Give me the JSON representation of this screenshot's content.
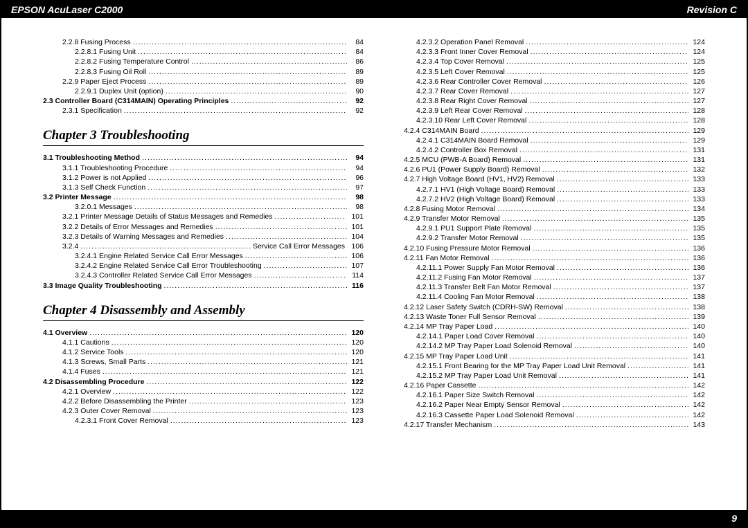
{
  "header": {
    "left": "EPSON AcuLaser C2000",
    "right": "Revision C"
  },
  "footer": {
    "page": "9"
  },
  "col1": {
    "block1": [
      {
        "lvl": 1,
        "bold": false,
        "label": "2.2.8 Fusing Process",
        "page": "84"
      },
      {
        "lvl": 2,
        "bold": false,
        "label": "2.2.8.1 Fusing Unit",
        "page": "84"
      },
      {
        "lvl": 2,
        "bold": false,
        "label": "2.2.8.2 Fusing Temperature Control",
        "page": "86"
      },
      {
        "lvl": 2,
        "bold": false,
        "label": "2.2.8.3 Fusing Oil Roll",
        "page": "89"
      },
      {
        "lvl": 1,
        "bold": false,
        "label": "2.2.9 Paper Eject Process",
        "page": "89"
      },
      {
        "lvl": 2,
        "bold": false,
        "label": "2.2.9.1 Duplex Unit (option)",
        "page": "90"
      },
      {
        "lvl": 0,
        "bold": true,
        "label": "2.3 Controller Board (C314MAIN) Operating Principles",
        "page": "92"
      },
      {
        "lvl": 1,
        "bold": false,
        "label": "2.3.1 Specification",
        "page": "92"
      }
    ],
    "chapter3": "Chapter 3  Troubleshooting",
    "block3": [
      {
        "lvl": 0,
        "bold": true,
        "label": "3.1 Troubleshooting Method",
        "page": "94"
      },
      {
        "lvl": 1,
        "bold": false,
        "label": "3.1.1 Troubleshooting Procedure",
        "page": "94"
      },
      {
        "lvl": 1,
        "bold": false,
        "label": "3.1.2 Power is not Applied",
        "page": "96"
      },
      {
        "lvl": 1,
        "bold": false,
        "label": "3.1.3 Self Check Function",
        "page": "97"
      },
      {
        "lvl": 0,
        "bold": true,
        "label": "3.2 Printer Message",
        "page": "98"
      },
      {
        "lvl": 2,
        "bold": false,
        "label": "3.2.0.1 Messages",
        "page": "98"
      },
      {
        "lvl": 1,
        "bold": false,
        "label": "3.2.1 Printer Message Details of Status Messages and Remedies",
        "mid": ".",
        "page": "101"
      },
      {
        "lvl": 1,
        "bold": false,
        "label": "3.2.2 Details of Error Messages and Remedies",
        "page": "101"
      },
      {
        "lvl": 1,
        "bold": false,
        "label": "3.2.3 Details of Warning Messages and Remedies",
        "page": "104"
      },
      {
        "lvl": 1,
        "bold": false,
        "label": "3.2.4",
        "mid": "Service Call Error Messages",
        "page": "106"
      },
      {
        "lvl": 2,
        "bold": false,
        "label": "3.2.4.1 Engine Related Service Call Error Messages",
        "page": "106"
      },
      {
        "lvl": 2,
        "bold": false,
        "label": "3.2.4.2 Engine Related Service Call Error Troubleshooting",
        "page": "107"
      },
      {
        "lvl": 2,
        "bold": false,
        "label": "3.2.4.3 Controller Related Service Call Error Messages",
        "page": "114"
      },
      {
        "lvl": 0,
        "bold": true,
        "label": "3.3 Image Quality Troubleshooting",
        "page": "116"
      }
    ],
    "chapter4": "Chapter 4  Disassembly and Assembly",
    "block4": [
      {
        "lvl": 0,
        "bold": true,
        "label": "4.1 Overview",
        "page": "120"
      },
      {
        "lvl": 1,
        "bold": false,
        "label": "4.1.1 Cautions",
        "page": "120"
      },
      {
        "lvl": 1,
        "bold": false,
        "label": "4.1.2 Service Tools",
        "page": "120"
      },
      {
        "lvl": 1,
        "bold": false,
        "label": "4.1.3 Screws, Small Parts",
        "page": "121"
      },
      {
        "lvl": 1,
        "bold": false,
        "label": "4.1.4 Fuses",
        "page": "121"
      },
      {
        "lvl": 0,
        "bold": true,
        "label": "4.2 Disassembling Procedure",
        "page": "122"
      },
      {
        "lvl": 1,
        "bold": false,
        "label": "4.2.1 Overview",
        "page": "122"
      },
      {
        "lvl": 1,
        "bold": false,
        "label": "4.2.2 Before Disassembling the Printer",
        "page": "123"
      },
      {
        "lvl": 1,
        "bold": false,
        "label": "4.2.3 Outer Cover Removal",
        "page": "123"
      },
      {
        "lvl": 2,
        "bold": false,
        "label": "4.2.3.1 Front Cover Removal",
        "page": "123"
      }
    ]
  },
  "col2": {
    "block": [
      {
        "lvl": 2,
        "bold": false,
        "label": "4.2.3.2 Operation Panel Removal",
        "page": "124"
      },
      {
        "lvl": 2,
        "bold": false,
        "label": "4.2.3.3 Front Inner Cover Removal",
        "page": "124"
      },
      {
        "lvl": 2,
        "bold": false,
        "label": "4.2.3.4 Top Cover Removal",
        "page": "125"
      },
      {
        "lvl": 2,
        "bold": false,
        "label": "4.2.3.5 Left Cover Removal",
        "page": "125"
      },
      {
        "lvl": 2,
        "bold": false,
        "label": "4.2.3.6 Rear Controller Cover Removal",
        "page": "126"
      },
      {
        "lvl": 2,
        "bold": false,
        "label": "4.2.3.7 Rear Cover Removal",
        "page": "127"
      },
      {
        "lvl": 2,
        "bold": false,
        "label": "4.2.3.8 Rear Right Cover Removal",
        "page": "127"
      },
      {
        "lvl": 2,
        "bold": false,
        "label": "4.2.3.9 Left Rear Cover Removal",
        "page": "128"
      },
      {
        "lvl": 2,
        "bold": false,
        "label": "4.2.3.10 Rear Left Cover Removal",
        "page": "128"
      },
      {
        "lvl": 1,
        "bold": false,
        "label": "4.2.4 C314MAIN Board",
        "page": "129"
      },
      {
        "lvl": 2,
        "bold": false,
        "label": "4.2.4.1 C314MAIN Board Removal",
        "page": "129"
      },
      {
        "lvl": 2,
        "bold": false,
        "label": "4.2.4.2 Controller Box Removal",
        "page": "131"
      },
      {
        "lvl": 1,
        "bold": false,
        "label": "4.2.5 MCU (PWB-A Board) Removal",
        "page": "131"
      },
      {
        "lvl": 1,
        "bold": false,
        "label": "4.2.6 PU1 (Power Supply Board) Removal",
        "page": "132"
      },
      {
        "lvl": 1,
        "bold": false,
        "label": "4.2.7 High Voltage Board (HV1, HV2) Removal",
        "page": "133"
      },
      {
        "lvl": 2,
        "bold": false,
        "label": "4.2.7.1 HV1 (High Voltage Board) Removal",
        "page": "133"
      },
      {
        "lvl": 2,
        "bold": false,
        "label": "4.2.7.2 HV2 (High Voltage Board) Removal",
        "page": "133"
      },
      {
        "lvl": 1,
        "bold": false,
        "label": "4.2.8 Fusing Motor Removal",
        "page": "134"
      },
      {
        "lvl": 1,
        "bold": false,
        "label": "4.2.9 Transfer Motor Removal",
        "page": "135"
      },
      {
        "lvl": 2,
        "bold": false,
        "label": "4.2.9.1 PU1 Support Plate Removal",
        "page": "135"
      },
      {
        "lvl": 2,
        "bold": false,
        "label": "4.2.9.2 Transfer Motor Removal",
        "page": "135"
      },
      {
        "lvl": 1,
        "bold": false,
        "label": "4.2.10 Fusing Pressure Motor Removal",
        "page": "136"
      },
      {
        "lvl": 1,
        "bold": false,
        "label": "4.2.11 Fan Motor Removal",
        "page": "136"
      },
      {
        "lvl": 2,
        "bold": false,
        "label": "4.2.11.1 Power Supply Fan Motor Removal",
        "page": "136"
      },
      {
        "lvl": 2,
        "bold": false,
        "label": "4.2.11.2 Fusing Fan Motor Removal",
        "page": "137"
      },
      {
        "lvl": 2,
        "bold": false,
        "label": "4.2.11.3 Transfer Belt Fan Motor Removal",
        "page": "137"
      },
      {
        "lvl": 2,
        "bold": false,
        "label": "4.2.11.4 Cooling Fan Motor Removal",
        "page": "138"
      },
      {
        "lvl": 1,
        "bold": false,
        "label": "4.2.12 Laser Safety Switch (CDRH-SW) Removal",
        "page": "138"
      },
      {
        "lvl": 1,
        "bold": false,
        "label": "4.2.13 Waste Toner Full Sensor Removal",
        "page": "139"
      },
      {
        "lvl": 1,
        "bold": false,
        "label": "4.2.14 MP Tray Paper Load",
        "page": "140"
      },
      {
        "lvl": 2,
        "bold": false,
        "label": "4.2.14.1 Paper Load Cover Removal",
        "page": "140"
      },
      {
        "lvl": 2,
        "bold": false,
        "label": "4.2.14.2 MP Tray Paper Load Solenoid Removal",
        "page": "140"
      },
      {
        "lvl": 1,
        "bold": false,
        "label": "4.2.15 MP Tray Paper Load Unit",
        "page": "141"
      },
      {
        "lvl": 2,
        "bold": false,
        "label": "4.2.15.1 Front Bearing for the MP Tray Paper Load Unit Removal",
        "page": "141"
      },
      {
        "lvl": 2,
        "bold": false,
        "label": "4.2.15.2 MP Tray Paper Load Unit Removal",
        "page": "141"
      },
      {
        "lvl": 1,
        "bold": false,
        "label": "4.2.16 Paper Cassette",
        "page": "142"
      },
      {
        "lvl": 2,
        "bold": false,
        "label": "4.2.16.1 Paper Size Switch Removal",
        "page": "142"
      },
      {
        "lvl": 2,
        "bold": false,
        "label": "4.2.16.2 Paper Near Empty Sensor Removal",
        "page": "142"
      },
      {
        "lvl": 2,
        "bold": false,
        "label": "4.2.16.3 Cassette Paper Load Solenoid Removal",
        "page": "142"
      },
      {
        "lvl": 1,
        "bold": false,
        "label": "4.2.17 Transfer Mechanism",
        "page": "143"
      }
    ]
  }
}
